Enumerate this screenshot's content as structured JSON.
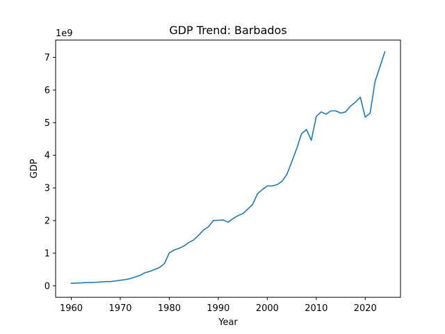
{
  "chart_data": {
    "type": "line",
    "title": "GDP Trend: Barbados",
    "xlabel": "Year",
    "ylabel": "GDP",
    "y_offset_label": "1e9",
    "xlim": [
      1956.8,
      2027.2
    ],
    "ylim": [
      -0.35,
      7.53
    ],
    "x_ticks": [
      1960,
      1970,
      1980,
      1990,
      2000,
      2010,
      2020
    ],
    "y_ticks": [
      0,
      1,
      2,
      3,
      4,
      5,
      6,
      7
    ],
    "grid": false,
    "line_color": "#1f77b4",
    "series": [
      {
        "x": [
          1960,
          1961,
          1962,
          1963,
          1964,
          1965,
          1966,
          1967,
          1968,
          1969,
          1970,
          1971,
          1972,
          1973,
          1974,
          1975,
          1976,
          1977,
          1978,
          1979,
          1980,
          1981,
          1982,
          1983,
          1984,
          1985,
          1986,
          1987,
          1988,
          1989,
          1990,
          1991,
          1992,
          1993,
          1994,
          1995,
          1996,
          1997,
          1998,
          1999,
          2000,
          2001,
          2002,
          2003,
          2004,
          2005,
          2006,
          2007,
          2008,
          2009,
          2010,
          2011,
          2012,
          2013,
          2014,
          2015,
          2016,
          2017,
          2018,
          2019,
          2020,
          2021,
          2022,
          2023,
          2024
        ],
        "values": [
          0.08,
          0.085,
          0.09,
          0.1,
          0.1,
          0.11,
          0.12,
          0.13,
          0.13,
          0.15,
          0.17,
          0.19,
          0.22,
          0.27,
          0.32,
          0.4,
          0.44,
          0.5,
          0.56,
          0.68,
          1.01,
          1.1,
          1.15,
          1.22,
          1.33,
          1.41,
          1.55,
          1.71,
          1.81,
          2.0,
          2.01,
          2.02,
          1.95,
          2.06,
          2.15,
          2.21,
          2.35,
          2.49,
          2.82,
          2.95,
          3.06,
          3.06,
          3.1,
          3.2,
          3.41,
          3.8,
          4.2,
          4.66,
          4.79,
          4.46,
          5.19,
          5.33,
          5.26,
          5.36,
          5.36,
          5.29,
          5.33,
          5.51,
          5.63,
          5.78,
          5.17,
          5.29,
          6.26,
          6.71,
          7.17
        ]
      }
    ]
  }
}
